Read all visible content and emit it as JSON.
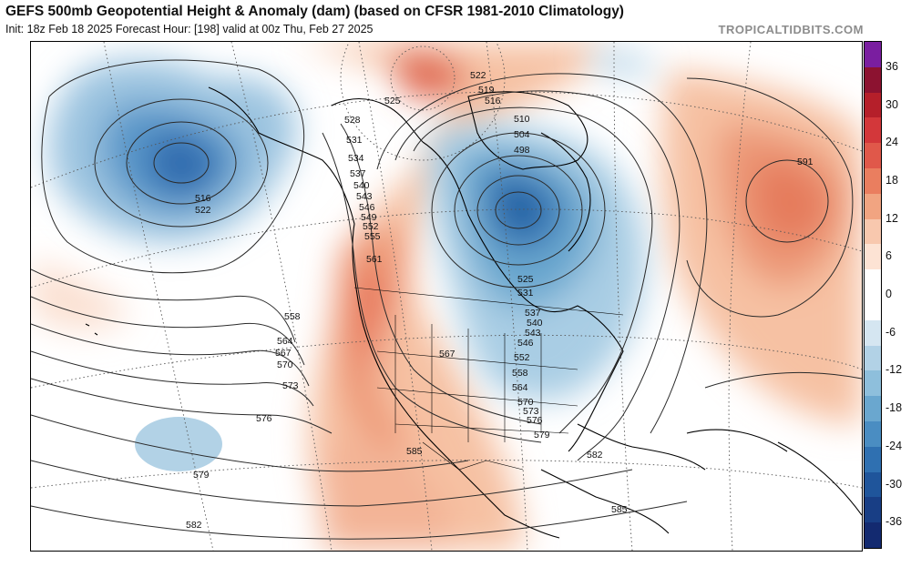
{
  "header": {
    "title": "GEFS 500mb Geopotential Height & Anomaly (dam) (based on CFSR 1981-2010 Climatology)",
    "subtitle": "Init: 18z Feb 18 2025   Forecast Hour: [198]   valid at 00z Thu, Feb 27 2025",
    "brand": "TROPICALTIDBITS.COM"
  },
  "colorbar": {
    "ticks": [
      "36",
      "30",
      "24",
      "18",
      "12",
      "6",
      "0",
      "-6",
      "-12",
      "-18",
      "-24",
      "-30",
      "-36"
    ],
    "colors": [
      "#7a1ea0",
      "#8c1230",
      "#b51f2a",
      "#d3373a",
      "#e0584a",
      "#ea7e5f",
      "#f1a481",
      "#f8c8ae",
      "#fde3d4",
      "#ffffff",
      "#ffffff",
      "#d5e6f1",
      "#b2d2e6",
      "#8ebfdc",
      "#6aa7cf",
      "#4a8dc2",
      "#2f70b1",
      "#1f559b",
      "#183e85",
      "#132a70"
    ]
  },
  "contour_labels": [
    {
      "text": "516"
    },
    {
      "text": "522"
    },
    {
      "text": "525"
    },
    {
      "text": "522"
    },
    {
      "text": "519"
    },
    {
      "text": "516"
    },
    {
      "text": "510"
    },
    {
      "text": "504"
    },
    {
      "text": "498"
    },
    {
      "text": "528"
    },
    {
      "text": "531"
    },
    {
      "text": "534"
    },
    {
      "text": "537"
    },
    {
      "text": "540"
    },
    {
      "text": "543"
    },
    {
      "text": "546"
    },
    {
      "text": "549"
    },
    {
      "text": "552"
    },
    {
      "text": "555"
    },
    {
      "text": "561"
    },
    {
      "text": "558"
    },
    {
      "text": "564"
    },
    {
      "text": "567"
    },
    {
      "text": "570"
    },
    {
      "text": "573"
    },
    {
      "text": "576"
    },
    {
      "text": "579"
    },
    {
      "text": "582"
    },
    {
      "text": "585"
    },
    {
      "text": "582"
    },
    {
      "text": "579"
    },
    {
      "text": "585"
    },
    {
      "text": "591"
    },
    {
      "text": "567"
    },
    {
      "text": "525"
    },
    {
      "text": "531"
    },
    {
      "text": "537"
    },
    {
      "text": "540"
    },
    {
      "text": "543"
    },
    {
      "text": "546"
    },
    {
      "text": "552"
    },
    {
      "text": "558"
    },
    {
      "text": "564"
    },
    {
      "text": "570"
    },
    {
      "text": "573"
    },
    {
      "text": "576"
    },
    {
      "text": "579"
    },
    {
      "text": "582"
    },
    {
      "text": "585"
    }
  ]
}
